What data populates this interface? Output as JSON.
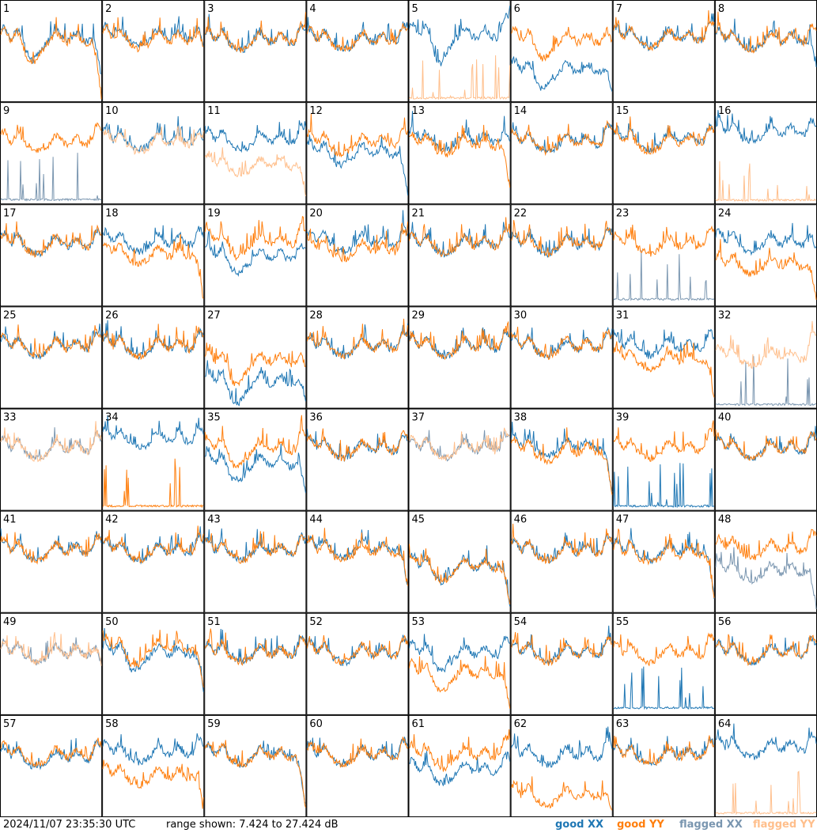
{
  "footer": {
    "timestamp": "2024/11/07 23:35:30 UTC",
    "range": "range shown: 7.424 to 27.424 dB"
  },
  "colors": {
    "good_xx": "#1f77b4",
    "good_yy": "#ff7f0e",
    "flagged_xx": "#7a96b0",
    "flagged_yy": "#ffbf8c"
  },
  "chart_data": {
    "type": "line",
    "title": "",
    "xlabel": "",
    "ylabel": "",
    "ylim": [
      7.424,
      27.424
    ],
    "units": "dB",
    "grid": false,
    "legend_position": "bottom-right",
    "legend": [
      "good XX",
      "good YY",
      "flagged XX",
      "flagged YY"
    ],
    "panels": [
      {
        "id": "1",
        "xx": "good",
        "yy": "good",
        "xx_level": 19.4,
        "yy_level": 19.0,
        "xx_end": 12.0,
        "yy_end": 8.0,
        "dip": 3.0
      },
      {
        "id": "2",
        "xx": "good",
        "yy": "good",
        "xx_level": 19.8,
        "yy_level": 19.2,
        "xx_end": 18.5,
        "yy_end": 18.0,
        "dip": 0
      },
      {
        "id": "3",
        "xx": "good",
        "yy": "good",
        "xx_level": 19.0,
        "yy_level": 19.0,
        "xx_end": 21.0,
        "yy_end": 21.0,
        "dip": 0
      },
      {
        "id": "4",
        "xx": "good",
        "yy": "good",
        "xx_level": 19.0,
        "yy_level": 19.0,
        "xx_end": 21.0,
        "yy_end": 21.0,
        "dip": 0
      },
      {
        "id": "5",
        "xx": "good",
        "yy": "flagged",
        "xx_level": 20.0,
        "yy_level": 7.9,
        "xx_end": 24.0,
        "yy_end": 7.9,
        "dip": 4.0
      },
      {
        "id": "6",
        "xx": "good",
        "yy": "good",
        "xx_level": 13.0,
        "yy_level": 19.0,
        "xx_end": 8.5,
        "yy_end": 19.0,
        "dip": 2.0
      },
      {
        "id": "7",
        "xx": "good",
        "yy": "good",
        "xx_level": 19.5,
        "yy_level": 19.5,
        "xx_end": 22.0,
        "yy_end": 22.0,
        "dip": 0
      },
      {
        "id": "8",
        "xx": "good",
        "yy": "good",
        "xx_level": 19.0,
        "yy_level": 19.0,
        "xx_end": 14.0,
        "yy_end": 21.0,
        "dip": 0
      },
      {
        "id": "9",
        "xx": "flagged",
        "yy": "good",
        "xx_level": 8.0,
        "yy_level": 19.0,
        "xx_end": 8.0,
        "yy_end": 22.0,
        "dip": 0
      },
      {
        "id": "10",
        "xx": "good",
        "yy": "flagged",
        "xx_level": 19.5,
        "yy_level": 19.0,
        "xx_end": 19.5,
        "yy_end": 19.0,
        "dip": 0
      },
      {
        "id": "11",
        "xx": "good",
        "yy": "flagged",
        "xx_level": 19.5,
        "yy_level": 14.5,
        "xx_end": 21.0,
        "yy_end": 8.0,
        "dip": 0
      },
      {
        "id": "12",
        "xx": "good",
        "yy": "good",
        "xx_level": 17.0,
        "yy_level": 19.0,
        "xx_end": 8.0,
        "yy_end": 21.0,
        "dip": 1.0
      },
      {
        "id": "13",
        "xx": "good",
        "yy": "good",
        "xx_level": 19.5,
        "yy_level": 18.5,
        "xx_end": 19.0,
        "yy_end": 10.0,
        "dip": 0
      },
      {
        "id": "14",
        "xx": "good",
        "yy": "good",
        "xx_level": 19.0,
        "yy_level": 19.0,
        "xx_end": 22.0,
        "yy_end": 22.0,
        "dip": 0
      },
      {
        "id": "15",
        "xx": "good",
        "yy": "good",
        "xx_level": 19.5,
        "yy_level": 19.0,
        "xx_end": 21.0,
        "yy_end": 21.0,
        "dip": 0
      },
      {
        "id": "16",
        "xx": "good",
        "yy": "flagged",
        "xx_level": 21.0,
        "yy_level": 7.9,
        "xx_end": 22.0,
        "yy_end": 7.9,
        "dip": 0
      },
      {
        "id": "17",
        "xx": "good",
        "yy": "good",
        "xx_level": 19.0,
        "yy_level": 19.0,
        "xx_end": 21.0,
        "yy_end": 21.0,
        "dip": 0
      },
      {
        "id": "18",
        "xx": "good",
        "yy": "good",
        "xx_level": 19.5,
        "yy_level": 17.0,
        "xx_end": 21.0,
        "yy_end": 8.0,
        "dip": 0
      },
      {
        "id": "19",
        "xx": "good",
        "yy": "good",
        "xx_level": 16.5,
        "yy_level": 19.5,
        "xx_end": 18.0,
        "yy_end": 22.0,
        "dip": 1.5
      },
      {
        "id": "20",
        "xx": "good",
        "yy": "good",
        "xx_level": 19.5,
        "yy_level": 18.0,
        "xx_end": 21.0,
        "yy_end": 21.0,
        "dip": 0
      },
      {
        "id": "21",
        "xx": "good",
        "yy": "good",
        "xx_level": 19.0,
        "yy_level": 19.0,
        "xx_end": 21.0,
        "yy_end": 21.0,
        "dip": 0
      },
      {
        "id": "22",
        "xx": "good",
        "yy": "good",
        "xx_level": 19.0,
        "yy_level": 19.0,
        "xx_end": 21.0,
        "yy_end": 21.0,
        "dip": 0
      },
      {
        "id": "23",
        "xx": "flagged",
        "yy": "good",
        "xx_level": 8.5,
        "yy_level": 19.0,
        "xx_end": 8.5,
        "yy_end": 22.0,
        "dip": 0
      },
      {
        "id": "24",
        "xx": "good",
        "yy": "good",
        "xx_level": 19.5,
        "yy_level": 15.0,
        "xx_end": 18.0,
        "yy_end": 8.0,
        "dip": 0
      },
      {
        "id": "25",
        "xx": "good",
        "yy": "good",
        "xx_level": 19.0,
        "yy_level": 19.0,
        "xx_end": 21.0,
        "yy_end": 21.0,
        "dip": 0
      },
      {
        "id": "26",
        "xx": "good",
        "yy": "good",
        "xx_level": 19.0,
        "yy_level": 19.0,
        "xx_end": 21.0,
        "yy_end": 21.0,
        "dip": 0
      },
      {
        "id": "27",
        "xx": "good",
        "yy": "good",
        "xx_level": 12.0,
        "yy_level": 16.0,
        "xx_end": 8.0,
        "yy_end": 15.0,
        "dip": 3.0
      },
      {
        "id": "28",
        "xx": "good",
        "yy": "good",
        "xx_level": 19.0,
        "yy_level": 19.0,
        "xx_end": 21.0,
        "yy_end": 21.0,
        "dip": 0
      },
      {
        "id": "29",
        "xx": "good",
        "yy": "good",
        "xx_level": 19.0,
        "yy_level": 19.0,
        "xx_end": 21.0,
        "yy_end": 21.0,
        "dip": 0
      },
      {
        "id": "30",
        "xx": "good",
        "yy": "good",
        "xx_level": 19.0,
        "yy_level": 19.0,
        "xx_end": 21.0,
        "yy_end": 21.0,
        "dip": 0
      },
      {
        "id": "31",
        "xx": "good",
        "yy": "good",
        "xx_level": 19.0,
        "yy_level": 16.5,
        "xx_end": 21.0,
        "yy_end": 8.5,
        "dip": 0
      },
      {
        "id": "32",
        "xx": "flagged",
        "yy": "flagged",
        "xx_level": 7.9,
        "yy_level": 17.0,
        "xx_end": 7.9,
        "yy_end": 22.0,
        "dip": 0
      },
      {
        "id": "33",
        "xx": "flagged",
        "yy": "flagged",
        "xx_level": 19.0,
        "yy_level": 19.0,
        "xx_end": 21.0,
        "yy_end": 21.0,
        "dip": 0
      },
      {
        "id": "34",
        "xx": "good",
        "yy": "good",
        "xx_level": 21.0,
        "yy_level": 8.0,
        "xx_end": 22.0,
        "yy_end": 8.0,
        "dip": 0
      },
      {
        "id": "35",
        "xx": "good",
        "yy": "good",
        "xx_level": 16.0,
        "yy_level": 19.0,
        "xx_end": 10.0,
        "yy_end": 22.0,
        "dip": 2.0
      },
      {
        "id": "36",
        "xx": "good",
        "yy": "good",
        "xx_level": 19.0,
        "yy_level": 19.0,
        "xx_end": 21.0,
        "yy_end": 21.0,
        "dip": 0
      },
      {
        "id": "37",
        "xx": "flagged",
        "yy": "flagged",
        "xx_level": 19.0,
        "yy_level": 19.0,
        "xx_end": 21.0,
        "yy_end": 21.0,
        "dip": 0
      },
      {
        "id": "38",
        "xx": "good",
        "yy": "good",
        "xx_level": 19.5,
        "yy_level": 18.5,
        "xx_end": 10.0,
        "yy_end": 10.0,
        "dip": 0
      },
      {
        "id": "39",
        "xx": "good",
        "yy": "good",
        "xx_level": 8.0,
        "yy_level": 19.0,
        "xx_end": 8.0,
        "yy_end": 22.0,
        "dip": 0
      },
      {
        "id": "40",
        "xx": "good",
        "yy": "good",
        "xx_level": 19.0,
        "yy_level": 19.0,
        "xx_end": 21.0,
        "yy_end": 21.0,
        "dip": 0
      },
      {
        "id": "41",
        "xx": "good",
        "yy": "good",
        "xx_level": 19.0,
        "yy_level": 19.0,
        "xx_end": 21.0,
        "yy_end": 21.0,
        "dip": 0
      },
      {
        "id": "42",
        "xx": "good",
        "yy": "good",
        "xx_level": 19.0,
        "yy_level": 19.0,
        "xx_end": 21.0,
        "yy_end": 21.0,
        "dip": 0
      },
      {
        "id": "43",
        "xx": "good",
        "yy": "good",
        "xx_level": 19.0,
        "yy_level": 19.0,
        "xx_end": 21.0,
        "yy_end": 21.0,
        "dip": 0
      },
      {
        "id": "44",
        "xx": "good",
        "yy": "good",
        "xx_level": 19.5,
        "yy_level": 19.0,
        "xx_end": 12.0,
        "yy_end": 12.0,
        "dip": 0
      },
      {
        "id": "45",
        "xx": "good",
        "yy": "good",
        "xx_level": 16.0,
        "yy_level": 16.0,
        "xx_end": 8.0,
        "yy_end": 8.0,
        "dip": 1.5
      },
      {
        "id": "46",
        "xx": "good",
        "yy": "good",
        "xx_level": 19.0,
        "yy_level": 19.0,
        "xx_end": 21.0,
        "yy_end": 21.0,
        "dip": 0
      },
      {
        "id": "47",
        "xx": "good",
        "yy": "good",
        "xx_level": 19.0,
        "yy_level": 18.5,
        "xx_end": 10.0,
        "yy_end": 10.0,
        "dip": 0
      },
      {
        "id": "48",
        "xx": "flagged",
        "yy": "good",
        "xx_level": 15.0,
        "yy_level": 19.5,
        "xx_end": 8.0,
        "yy_end": 22.0,
        "dip": 0
      },
      {
        "id": "49",
        "xx": "flagged",
        "yy": "flagged",
        "xx_level": 19.0,
        "yy_level": 19.0,
        "xx_end": 17.0,
        "yy_end": 17.0,
        "dip": 0
      },
      {
        "id": "50",
        "xx": "good",
        "yy": "good",
        "xx_level": 19.0,
        "yy_level": 20.0,
        "xx_end": 12.0,
        "yy_end": 12.0,
        "dip": 2.0
      },
      {
        "id": "51",
        "xx": "good",
        "yy": "good",
        "xx_level": 19.0,
        "yy_level": 19.0,
        "xx_end": 21.0,
        "yy_end": 21.0,
        "dip": 0
      },
      {
        "id": "52",
        "xx": "good",
        "yy": "good",
        "xx_level": 19.0,
        "yy_level": 19.0,
        "xx_end": 21.0,
        "yy_end": 21.0,
        "dip": 0
      },
      {
        "id": "53",
        "xx": "good",
        "yy": "good",
        "xx_level": 19.0,
        "yy_level": 15.0,
        "xx_end": 21.0,
        "yy_end": 8.0,
        "dip": 2.0
      },
      {
        "id": "54",
        "xx": "good",
        "yy": "good",
        "xx_level": 19.0,
        "yy_level": 19.0,
        "xx_end": 21.0,
        "yy_end": 21.0,
        "dip": 0
      },
      {
        "id": "55",
        "xx": "good",
        "yy": "good",
        "xx_level": 8.5,
        "yy_level": 19.0,
        "xx_end": 8.5,
        "yy_end": 22.0,
        "dip": 0
      },
      {
        "id": "56",
        "xx": "good",
        "yy": "good",
        "xx_level": 19.0,
        "yy_level": 19.0,
        "xx_end": 21.0,
        "yy_end": 21.0,
        "dip": 0
      },
      {
        "id": "57",
        "xx": "good",
        "yy": "good",
        "xx_level": 18.5,
        "yy_level": 19.0,
        "xx_end": 21.0,
        "yy_end": 21.0,
        "dip": 0
      },
      {
        "id": "58",
        "xx": "good",
        "yy": "good",
        "xx_level": 19.5,
        "yy_level": 15.0,
        "xx_end": 21.0,
        "yy_end": 8.0,
        "dip": 0
      },
      {
        "id": "59",
        "xx": "good",
        "yy": "good",
        "xx_level": 19.0,
        "yy_level": 19.0,
        "xx_end": 8.0,
        "yy_end": 8.0,
        "dip": 0
      },
      {
        "id": "60",
        "xx": "good",
        "yy": "good",
        "xx_level": 19.0,
        "yy_level": 19.0,
        "xx_end": 21.0,
        "yy_end": 21.0,
        "dip": 0
      },
      {
        "id": "61",
        "xx": "good",
        "yy": "good",
        "xx_level": 16.0,
        "yy_level": 19.0,
        "xx_end": 18.0,
        "yy_end": 22.0,
        "dip": 1.0
      },
      {
        "id": "62",
        "xx": "good",
        "yy": "good",
        "xx_level": 19.0,
        "yy_level": 11.0,
        "xx_end": 21.0,
        "yy_end": 8.0,
        "dip": 0
      },
      {
        "id": "63",
        "xx": "good",
        "yy": "good",
        "xx_level": 19.0,
        "yy_level": 19.0,
        "xx_end": 21.0,
        "yy_end": 21.0,
        "dip": 0
      },
      {
        "id": "64",
        "xx": "good",
        "yy": "flagged",
        "xx_level": 20.5,
        "yy_level": 7.9,
        "xx_end": 22.0,
        "yy_end": 7.9,
        "dip": 0
      }
    ]
  }
}
